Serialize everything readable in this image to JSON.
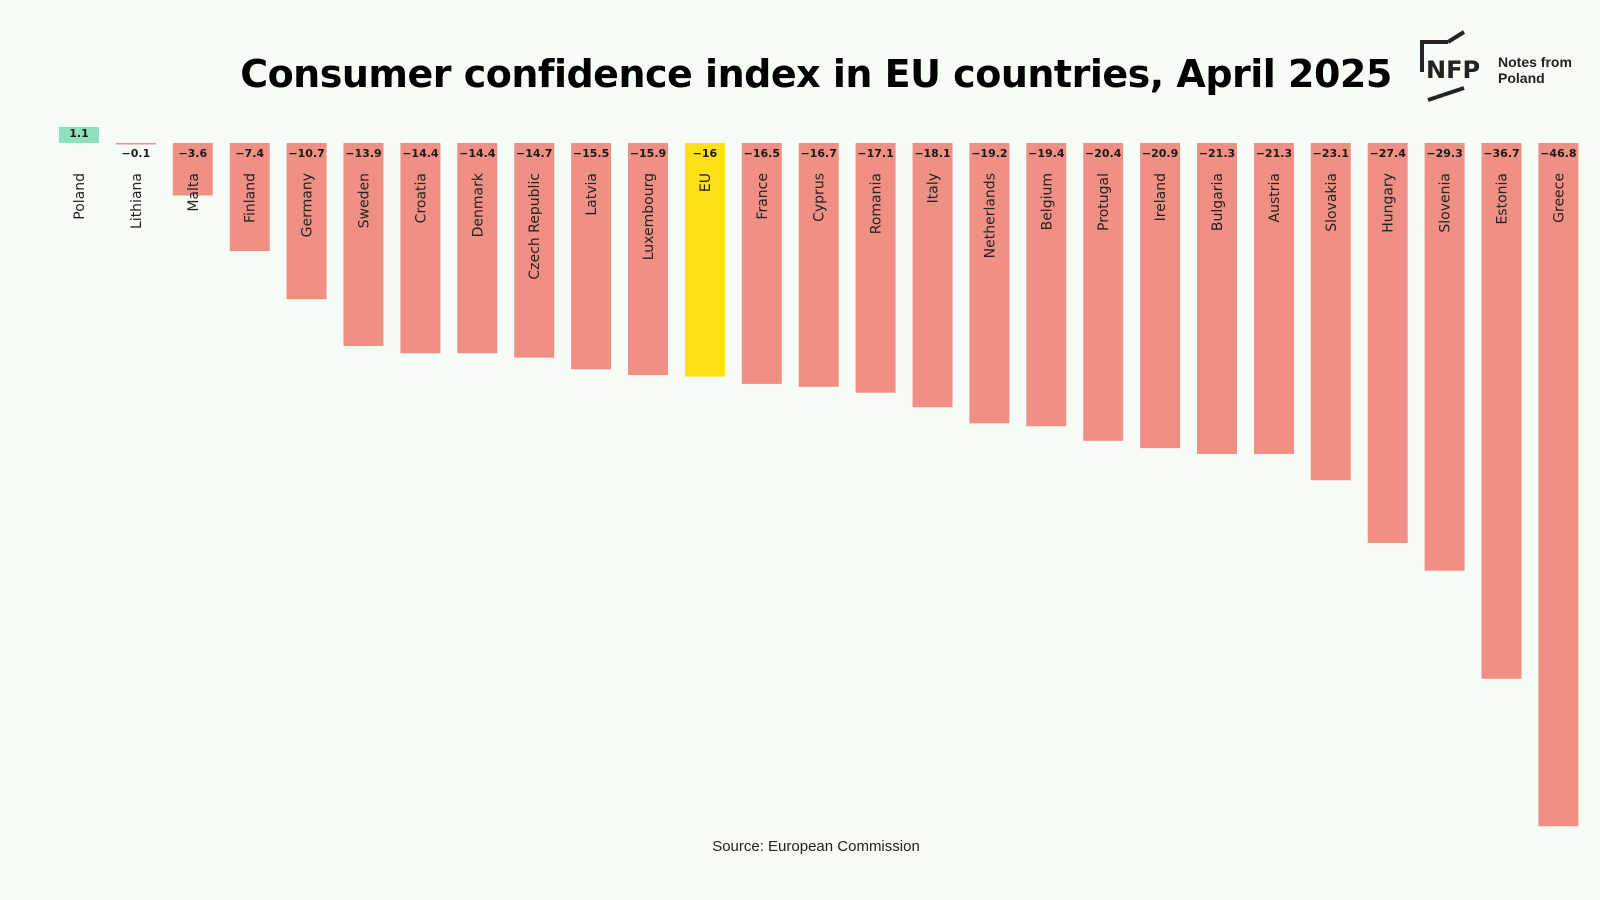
{
  "title": "Consumer confidence index in EU countries, April 2025",
  "source": "Source: European Commission",
  "logo": {
    "mark": "NFP",
    "line1": "Notes from",
    "line2": "Poland"
  },
  "colors": {
    "positive": "#8fe0bd",
    "negative": "#f09084",
    "highlight": "#ffdf16",
    "background": "#f6fdf7"
  },
  "chart_data": {
    "type": "bar",
    "title": "Consumer confidence index in EU countries, April 2025",
    "categories": [
      "Poland",
      "Lithiana",
      "Malta",
      "Finland",
      "Germany",
      "Sweden",
      "Croatia",
      "Denmark",
      "Czech Republic",
      "Latvia",
      "Luxembourg",
      "EU",
      "France",
      "Cyprus",
      "Romania",
      "Italy",
      "Netherlands",
      "Belgium",
      "Protugal",
      "Ireland",
      "Bulgaria",
      "Austria",
      "Slovakia",
      "Hungary",
      "Slovenia",
      "Estonia",
      "Greece"
    ],
    "values": [
      1.1,
      -0.1,
      -3.6,
      -7.4,
      -10.7,
      -13.9,
      -14.4,
      -14.4,
      -14.7,
      -15.5,
      -15.9,
      -16,
      -16.5,
      -16.7,
      -17.1,
      -18.1,
      -19.2,
      -19.4,
      -20.4,
      -20.9,
      -21.3,
      -21.3,
      -23.1,
      -27.4,
      -29.3,
      -36.7,
      -46.8
    ],
    "value_labels": [
      "1.1",
      "−0.1",
      "−3.6",
      "−7.4",
      "−10.7",
      "−13.9",
      "−14.4",
      "−14.4",
      "−14.7",
      "−15.5",
      "−15.9",
      "−16",
      "−16.5",
      "−16.7",
      "−17.1",
      "−18.1",
      "−19.2",
      "−19.4",
      "−20.4",
      "−20.9",
      "−21.3",
      "−21.3",
      "−23.1",
      "−27.4",
      "−29.3",
      "−36.7",
      "−46.8"
    ],
    "highlight": "EU",
    "xlabel": "",
    "ylabel": "",
    "ylim": [
      -46.8,
      1.1
    ],
    "grid": false,
    "legend": "none"
  }
}
